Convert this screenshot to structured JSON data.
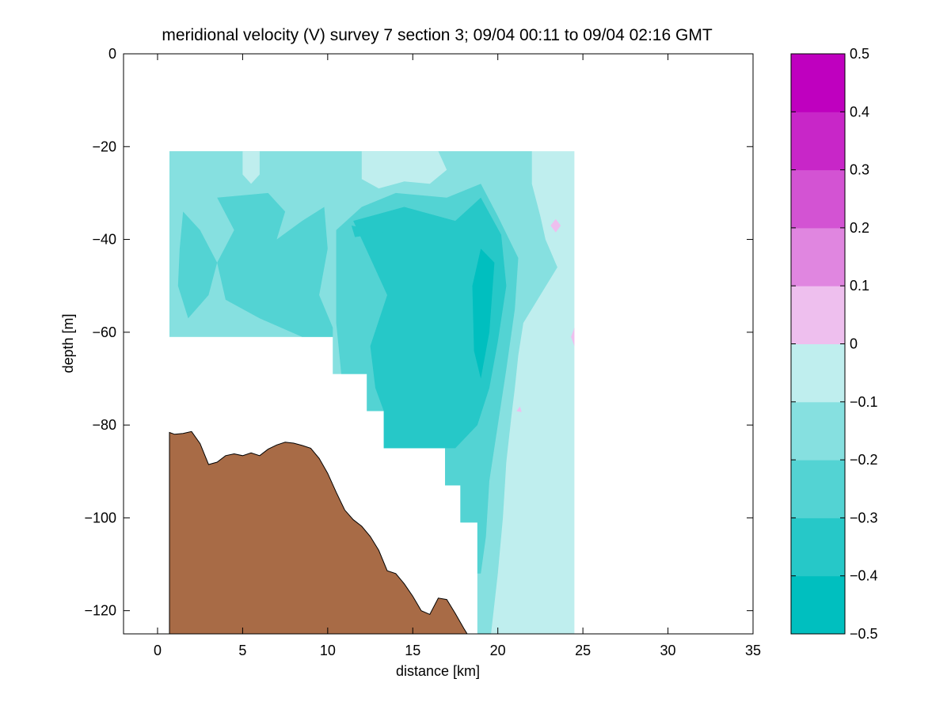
{
  "chart_data": {
    "type": "contour",
    "title": "meridional velocity (V) survey 7 section 3; 09/04 00:11 to 09/04 02:16 GMT",
    "xlabel": "distance [km]",
    "ylabel": "depth [m]",
    "xlim": [
      -2,
      35
    ],
    "ylim": [
      -125,
      0
    ],
    "x_ticks": [
      0,
      5,
      10,
      15,
      20,
      25,
      30,
      35
    ],
    "y_ticks": [
      0,
      -20,
      -40,
      -60,
      -80,
      -100,
      -120
    ],
    "grid": false,
    "data_extent": {
      "x_range": [
        0.7,
        24.5
      ],
      "top_depth": -21,
      "bottom_profile": [
        [
          0.7,
          -61
        ],
        [
          10.3,
          -61
        ],
        [
          10.3,
          -69
        ],
        [
          12.3,
          -69
        ],
        [
          12.3,
          -77
        ],
        [
          13.3,
          -77
        ],
        [
          13.3,
          -85
        ],
        [
          16.9,
          -85
        ],
        [
          16.9,
          -93
        ],
        [
          17.8,
          -93
        ],
        [
          17.8,
          -101
        ],
        [
          18.8,
          -101
        ],
        [
          18.8,
          -125
        ],
        [
          24.5,
          -125
        ]
      ]
    },
    "colorbar": {
      "levels": [
        -0.5,
        -0.4,
        -0.3,
        -0.2,
        -0.1,
        0,
        0.1,
        0.2,
        0.3,
        0.4,
        0.5
      ],
      "tick_labels": [
        "0.5",
        "0.4",
        "0.3",
        "0.2",
        "0.1",
        "0",
        "−0.1",
        "−0.2",
        "−0.3",
        "−0.4",
        "−0.5"
      ],
      "colors": [
        "#00bfbf",
        "#26c8c8",
        "#53d3d3",
        "#86e0e0",
        "#bfeeee",
        "#eebfee",
        "#e086e0",
        "#d353d3",
        "#c826c8",
        "#bf00bf"
      ],
      "placement": "right"
    },
    "bathymetry": {
      "color": "#a86b46",
      "points": [
        [
          0.7,
          -81.6
        ],
        [
          1.0,
          -82.0
        ],
        [
          1.5,
          -81.8
        ],
        [
          2.0,
          -81.4
        ],
        [
          2.5,
          -84.0
        ],
        [
          3.0,
          -88.5
        ],
        [
          3.5,
          -88.0
        ],
        [
          4.0,
          -86.6
        ],
        [
          4.5,
          -86.2
        ],
        [
          5.0,
          -86.6
        ],
        [
          5.5,
          -86.0
        ],
        [
          6.0,
          -86.6
        ],
        [
          6.5,
          -85.2
        ],
        [
          7.0,
          -84.3
        ],
        [
          7.5,
          -83.7
        ],
        [
          8.0,
          -83.9
        ],
        [
          8.5,
          -84.4
        ],
        [
          9.0,
          -85.0
        ],
        [
          9.5,
          -87.2
        ],
        [
          10.0,
          -90.4
        ],
        [
          10.5,
          -94.5
        ],
        [
          11.0,
          -98.3
        ],
        [
          11.5,
          -100.4
        ],
        [
          12.0,
          -101.8
        ],
        [
          12.5,
          -104.0
        ],
        [
          13.0,
          -107.0
        ],
        [
          13.5,
          -111.4
        ],
        [
          14.0,
          -112.0
        ],
        [
          14.5,
          -114.2
        ],
        [
          15.0,
          -116.9
        ],
        [
          15.5,
          -120.0
        ],
        [
          16.0,
          -120.8
        ],
        [
          16.5,
          -117.3
        ],
        [
          17.0,
          -117.6
        ],
        [
          17.5,
          -120.6
        ],
        [
          18.0,
          -123.8
        ],
        [
          18.2,
          -125.0
        ]
      ]
    },
    "contour_regions": [
      {
        "level": -0.1,
        "points": [
          [
            0.7,
            -21
          ],
          [
            24.5,
            -21
          ],
          [
            24.5,
            -125
          ],
          [
            18.8,
            -125
          ],
          [
            18.8,
            -101
          ],
          [
            17.8,
            -101
          ],
          [
            17.8,
            -93
          ],
          [
            16.9,
            -93
          ],
          [
            16.9,
            -85
          ],
          [
            13.3,
            -85
          ],
          [
            13.3,
            -77
          ],
          [
            12.3,
            -77
          ],
          [
            12.3,
            -69
          ],
          [
            10.3,
            -69
          ],
          [
            10.3,
            -61
          ],
          [
            0.7,
            -61
          ]
        ]
      },
      {
        "level": -0.2,
        "points": [
          [
            0.7,
            -21
          ],
          [
            22.0,
            -21
          ],
          [
            22.0,
            -28
          ],
          [
            22.5,
            -35
          ],
          [
            22.8,
            -40
          ],
          [
            23.5,
            -46
          ],
          [
            22.5,
            -52
          ],
          [
            21.5,
            -58
          ],
          [
            21.2,
            -65
          ],
          [
            21.0,
            -72
          ],
          [
            20.8,
            -78
          ],
          [
            20.5,
            -88
          ],
          [
            20.3,
            -100
          ],
          [
            20.0,
            -112
          ],
          [
            19.6,
            -125
          ],
          [
            18.8,
            -125
          ],
          [
            18.8,
            -101
          ],
          [
            17.8,
            -101
          ],
          [
            17.8,
            -93
          ],
          [
            16.9,
            -93
          ],
          [
            16.9,
            -85
          ],
          [
            13.3,
            -85
          ],
          [
            13.3,
            -77
          ],
          [
            12.3,
            -77
          ],
          [
            12.3,
            -69
          ],
          [
            10.3,
            -69
          ],
          [
            10.3,
            -61
          ],
          [
            0.7,
            -61
          ]
        ]
      },
      {
        "level": -0.1,
        "points": [
          [
            12.0,
            -21
          ],
          [
            16.5,
            -21
          ],
          [
            17.0,
            -25
          ],
          [
            16.0,
            -28
          ],
          [
            14.5,
            -27.5
          ],
          [
            13.0,
            -29
          ],
          [
            12.0,
            -27
          ]
        ]
      },
      {
        "level": -0.1,
        "points": [
          [
            5.0,
            -21
          ],
          [
            6.0,
            -21
          ],
          [
            6.0,
            -26
          ],
          [
            5.5,
            -28
          ],
          [
            5.0,
            -26
          ]
        ]
      },
      {
        "level": -0.3,
        "points": [
          [
            1.5,
            -34
          ],
          [
            2.5,
            -38
          ],
          [
            3.5,
            -45
          ],
          [
            3.0,
            -52
          ],
          [
            1.8,
            -57
          ],
          [
            1.2,
            -50
          ],
          [
            1.3,
            -42
          ]
        ]
      },
      {
        "level": -0.3,
        "points": [
          [
            3.5,
            -31
          ],
          [
            6.5,
            -30
          ],
          [
            7.5,
            -34
          ],
          [
            7.0,
            -40
          ],
          [
            8.5,
            -36
          ],
          [
            9.8,
            -33
          ],
          [
            10.0,
            -42
          ],
          [
            9.5,
            -52
          ],
          [
            10.3,
            -59
          ],
          [
            10.3,
            -61
          ],
          [
            8.5,
            -61
          ],
          [
            6.0,
            -57
          ],
          [
            4.0,
            -53
          ],
          [
            3.5,
            -45
          ],
          [
            4.5,
            -38
          ]
        ]
      },
      {
        "level": -0.3,
        "points": [
          [
            10.5,
            -38
          ],
          [
            12.0,
            -33
          ],
          [
            14.0,
            -30
          ],
          [
            17.0,
            -31
          ],
          [
            19.0,
            -28
          ],
          [
            20.0,
            -35
          ],
          [
            21.2,
            -44
          ],
          [
            21.0,
            -55
          ],
          [
            20.5,
            -68
          ],
          [
            20.0,
            -80
          ],
          [
            19.5,
            -92
          ],
          [
            19.3,
            -104
          ],
          [
            19.0,
            -112
          ],
          [
            18.8,
            -112
          ],
          [
            18.8,
            -101
          ],
          [
            17.8,
            -101
          ],
          [
            17.8,
            -93
          ],
          [
            16.9,
            -93
          ],
          [
            16.9,
            -85
          ],
          [
            13.3,
            -85
          ],
          [
            13.3,
            -77
          ],
          [
            12.3,
            -77
          ],
          [
            12.3,
            -69
          ],
          [
            10.8,
            -69
          ],
          [
            10.5,
            -58
          ]
        ]
      },
      {
        "level": -0.4,
        "points": [
          [
            11.5,
            -36
          ],
          [
            14.5,
            -33
          ],
          [
            17.5,
            -36
          ],
          [
            19.0,
            -31
          ],
          [
            20.2,
            -39
          ],
          [
            20.5,
            -50
          ],
          [
            20.0,
            -62
          ],
          [
            19.5,
            -72
          ],
          [
            18.8,
            -80
          ],
          [
            17.5,
            -85
          ],
          [
            13.3,
            -85
          ],
          [
            13.3,
            -77
          ],
          [
            12.8,
            -72
          ],
          [
            12.5,
            -63
          ],
          [
            13.5,
            -52
          ],
          [
            12.5,
            -44
          ]
        ]
      },
      {
        "level": -0.5,
        "points": [
          [
            19.0,
            -42
          ],
          [
            19.8,
            -45
          ],
          [
            19.5,
            -60
          ],
          [
            19.0,
            -70
          ],
          [
            18.6,
            -64
          ],
          [
            18.5,
            -50
          ]
        ]
      },
      {
        "level": -0.4,
        "points": [
          [
            11.4,
            -37
          ],
          [
            13.3,
            -38.5
          ],
          [
            11.6,
            -39.5
          ]
        ]
      },
      {
        "level": 0.0,
        "points": [
          [
            23.1,
            -37
          ],
          [
            23.4,
            -35.6
          ],
          [
            23.7,
            -37
          ],
          [
            23.4,
            -38.5
          ]
        ]
      },
      {
        "level": 0.0,
        "points": [
          [
            21.1,
            -77
          ],
          [
            21.3,
            -76
          ],
          [
            21.4,
            -77.2
          ]
        ]
      },
      {
        "level": 0.0,
        "points": [
          [
            24.3,
            -61
          ],
          [
            24.5,
            -59
          ],
          [
            24.5,
            -63
          ]
        ]
      }
    ]
  }
}
